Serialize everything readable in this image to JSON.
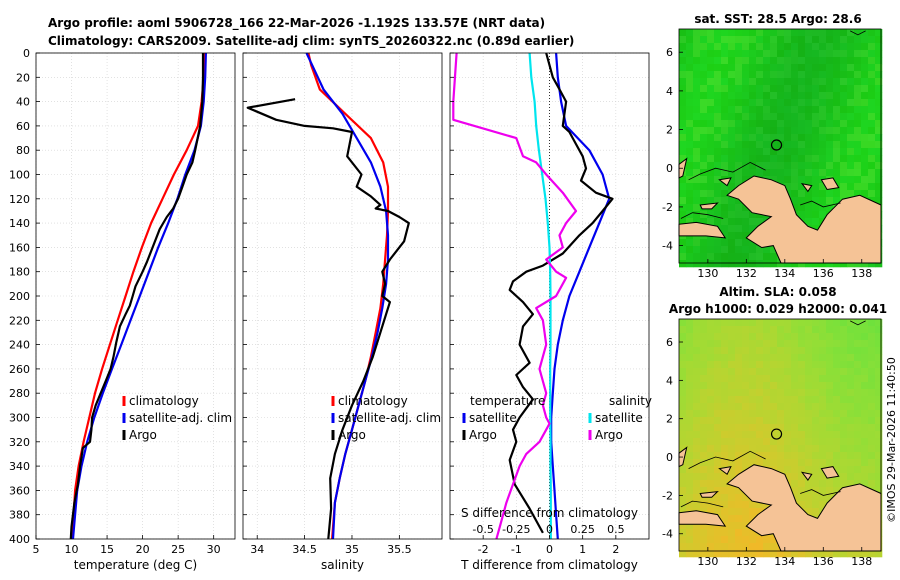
{
  "titles": {
    "line1": "Argo profile: aoml 5906728_166 22-Mar-2026 -1.192S 133.57E (NRT data)",
    "line2": "Climatology: CARS2009. Satellite-adj clim: synTS_20260322.nc (0.89d earlier)",
    "sst_map": "sat. SST: 28.5 Argo: 28.6",
    "sla_map_1": "Altim. SLA: 0.058",
    "sla_map_2": "Argo h1000: 0.029 h2000: 0.041",
    "credit": "©IMOS 29-Mar-2026 11:40:50"
  },
  "colors": {
    "climatology": "#ff0000",
    "satellite": "#0000ee",
    "argo": "#000000",
    "salinity_satellite": "#00e5ee",
    "salinity_argo": "#ee00ee",
    "land": "#f5c396",
    "coast": "#000000"
  },
  "chart_data": [
    {
      "type": "line",
      "id": "temperature",
      "xlabel": "temperature (deg C)",
      "ylabel": "",
      "xlim": [
        5,
        33
      ],
      "xticks": [
        5,
        10,
        15,
        20,
        25,
        30
      ],
      "ylim": [
        0,
        400
      ],
      "yticks": [
        0,
        20,
        40,
        60,
        80,
        100,
        120,
        140,
        160,
        180,
        200,
        220,
        240,
        260,
        280,
        300,
        320,
        340,
        360,
        380,
        400
      ],
      "legend": [
        "climatology",
        "satellite-adj. clim",
        "Argo"
      ],
      "series": [
        {
          "name": "climatology",
          "color": "#ff0000",
          "x": [
            28.7,
            28.6,
            28.3,
            27.8,
            26.2,
            24.4,
            22.8,
            21.2,
            19.9,
            18.7,
            17.6,
            16.5,
            15.4,
            14.3,
            13.3,
            12.5,
            11.7,
            11.0,
            10.5,
            10.1
          ],
          "y": [
            0,
            20,
            40,
            60,
            80,
            100,
            120,
            140,
            160,
            180,
            200,
            220,
            240,
            260,
            280,
            300,
            320,
            340,
            360,
            400
          ]
        },
        {
          "name": "satellite-adj. clim",
          "color": "#0000ee",
          "x": [
            28.9,
            28.8,
            28.6,
            28.2,
            27.3,
            26.0,
            24.9,
            23.6,
            22.2,
            20.9,
            19.6,
            18.3,
            17.0,
            15.7,
            14.4,
            13.2,
            12.2,
            11.4,
            10.8,
            10.2
          ],
          "y": [
            0,
            20,
            40,
            60,
            80,
            100,
            120,
            140,
            160,
            180,
            200,
            220,
            240,
            260,
            280,
            300,
            320,
            340,
            360,
            400
          ]
        },
        {
          "name": "Argo",
          "color": "#000000",
          "x": [
            28.5,
            28.5,
            28.4,
            28.1,
            27.4,
            27.0,
            26.2,
            25.6,
            25.0,
            24.3,
            23.4,
            22.4,
            21.4,
            20.6,
            20.0,
            19.0,
            18.6,
            18.2,
            17.6,
            16.8,
            16.3,
            15.9,
            15.5,
            14.8,
            13.4,
            12.9,
            12.8,
            12.6,
            11.6,
            11.2,
            10.9,
            10.4,
            10.0,
            9.9
          ],
          "y": [
            0,
            20,
            40,
            60,
            80,
            90,
            100,
            110,
            120,
            128,
            135,
            145,
            160,
            172,
            180,
            192,
            200,
            208,
            215,
            225,
            238,
            250,
            260,
            270,
            290,
            300,
            310,
            320,
            325,
            340,
            355,
            370,
            390,
            400
          ]
        }
      ]
    },
    {
      "type": "line",
      "id": "salinity",
      "xlabel": "salinity",
      "ylabel": "",
      "xlim": [
        33.85,
        35.95
      ],
      "xticks": [
        34,
        34.5,
        35,
        35.5
      ],
      "ylim": [
        0,
        400
      ],
      "legend": [
        "climatology",
        "satellite-adj. clim",
        "Argo"
      ],
      "series": [
        {
          "name": "climatology",
          "color": "#ff0000",
          "x": [
            34.54,
            34.57,
            34.66,
            34.93,
            35.2,
            35.33,
            35.38,
            35.38,
            35.37,
            35.35,
            35.33,
            35.3,
            35.25,
            35.2,
            35.14,
            35.07,
            35.0,
            34.93,
            34.87,
            34.82,
            34.79
          ],
          "y": [
            0,
            10,
            30,
            50,
            70,
            90,
            110,
            130,
            150,
            170,
            190,
            210,
            230,
            250,
            270,
            290,
            310,
            330,
            350,
            370,
            400
          ]
        },
        {
          "name": "satellite-adj. clim",
          "color": "#0000ee",
          "x": [
            34.52,
            34.58,
            34.7,
            34.9,
            35.05,
            35.2,
            35.3,
            35.36,
            35.38,
            35.38,
            35.36,
            35.32,
            35.27,
            35.21,
            35.14,
            35.07,
            35.0,
            34.93,
            34.87,
            34.82,
            34.8
          ],
          "y": [
            0,
            10,
            30,
            50,
            70,
            90,
            110,
            130,
            150,
            170,
            190,
            210,
            230,
            250,
            270,
            290,
            310,
            330,
            350,
            370,
            400
          ]
        },
        {
          "name": "Argo",
          "color": "#000000",
          "x": [
            34.4,
            33.9,
            34.2,
            34.5,
            34.8,
            35.0,
            34.95,
            35.1,
            35.05,
            35.2,
            35.3,
            35.25,
            35.38,
            35.5,
            35.6,
            35.55,
            35.4,
            35.32,
            35.35,
            35.32,
            35.4,
            35.36,
            35.3,
            35.22,
            35.12,
            35.0,
            34.9,
            34.82,
            34.77,
            34.78,
            34.75
          ],
          "y": [
            38,
            45,
            55,
            60,
            62,
            65,
            85,
            100,
            110,
            118,
            125,
            128,
            130,
            135,
            140,
            155,
            170,
            180,
            190,
            200,
            205,
            215,
            230,
            250,
            270,
            290,
            310,
            330,
            350,
            375,
            400
          ]
        }
      ]
    },
    {
      "type": "line",
      "id": "differences",
      "xlabel": "T difference from climatology",
      "xlabel_top": "S difference from climatology",
      "xlim": [
        -3,
        3
      ],
      "xticks": [
        -2,
        -1,
        0,
        1,
        2
      ],
      "s_xticks": [
        -0.5,
        -0.25,
        0,
        0.25,
        0.5
      ],
      "s_xtick_labels": [
        "-0.5",
        "-0.25",
        "0",
        "0.25",
        "0.5"
      ],
      "ylim": [
        0,
        400
      ],
      "legend_headers": [
        "temperature",
        "salinity"
      ],
      "legend": [
        "satellite",
        "Argo",
        "satellite",
        "Argo"
      ],
      "series": [
        {
          "name": "temperature satellite",
          "color": "#0000ee",
          "x": [
            0.2,
            0.25,
            0.35,
            0.5,
            1.2,
            1.6,
            1.8,
            1.5,
            1.2,
            0.9,
            0.6,
            0.4,
            0.25,
            0.15,
            0.1,
            0.05,
            0.05,
            0.1,
            0.15,
            0.2,
            0.25
          ],
          "y": [
            0,
            20,
            40,
            60,
            80,
            100,
            120,
            140,
            160,
            180,
            200,
            220,
            240,
            260,
            280,
            300,
            320,
            340,
            360,
            380,
            400
          ]
        },
        {
          "name": "temperature Argo",
          "color": "#000000",
          "x": [
            -0.1,
            0.1,
            0.3,
            0.5,
            0.4,
            0.6,
            0.8,
            1.0,
            1.1,
            0.95,
            1.4,
            1.9,
            1.6,
            1.3,
            0.9,
            0.4,
            -0.2,
            -0.7,
            -1.1,
            -1.2,
            -0.8,
            -0.5,
            -0.8,
            -0.9,
            -0.6,
            -1.0,
            -0.8,
            -0.5,
            -0.9,
            -1.1,
            -1.0,
            -1.2,
            -1.05,
            -0.6,
            -0.2
          ],
          "y": [
            0,
            20,
            30,
            40,
            60,
            65,
            75,
            85,
            95,
            105,
            115,
            120,
            130,
            140,
            150,
            165,
            175,
            180,
            188,
            195,
            205,
            215,
            225,
            240,
            255,
            265,
            275,
            285,
            300,
            310,
            320,
            335,
            355,
            375,
            395
          ]
        },
        {
          "name": "salinity satellite",
          "color": "#00e5ee",
          "x": [
            -0.6,
            -0.55,
            -0.45,
            -0.4,
            -0.32,
            -0.22,
            -0.12,
            -0.05,
            0,
            0.02,
            0.03,
            0.03,
            0.03,
            0.02,
            0.02,
            0.02,
            0.03,
            0.03,
            0.04,
            0.04,
            0.04
          ],
          "y": [
            0,
            20,
            40,
            60,
            80,
            100,
            120,
            140,
            160,
            180,
            200,
            220,
            240,
            260,
            280,
            300,
            320,
            340,
            360,
            380,
            400
          ]
        },
        {
          "name": "salinity Argo",
          "color": "#ee00ee",
          "x": [
            -2.8,
            -2.9,
            -2.9,
            -1.0,
            -0.8,
            -0.4,
            -0.1,
            0.4,
            0.8,
            0.5,
            0.3,
            0.4,
            -0.1,
            0.2,
            0.5,
            0.2,
            -0.4,
            -0.2,
            -0.1,
            -0.3,
            -0.1,
            -0.2,
            -0.1,
            0.0,
            -0.1,
            -0.3,
            -0.7,
            -0.9,
            -1.1,
            -1.3,
            -1.5,
            -1.6
          ],
          "y": [
            0,
            40,
            55,
            70,
            85,
            90,
            100,
            115,
            130,
            140,
            150,
            160,
            170,
            180,
            185,
            200,
            210,
            220,
            240,
            260,
            280,
            290,
            300,
            305,
            310,
            320,
            330,
            340,
            355,
            370,
            390,
            400
          ]
        }
      ]
    },
    {
      "type": "heatmap",
      "id": "sst_map",
      "title": "sat. SST: 28.5 Argo: 28.6",
      "xlim": [
        128.5,
        139
      ],
      "xticks": [
        130,
        132,
        134,
        136,
        138
      ],
      "ylim": [
        -4.9,
        7.2
      ],
      "yticks": [
        -4,
        -2,
        0,
        2,
        4,
        6
      ],
      "profile_marker": {
        "lon": 133.57,
        "lat": 1.2
      }
    },
    {
      "type": "heatmap",
      "id": "sla_map",
      "title": "Altim. SLA: 0.058 / Argo h1000: 0.029 h2000: 0.041",
      "xlim": [
        128.5,
        139
      ],
      "xticks": [
        130,
        132,
        134,
        136,
        138
      ],
      "ylim": [
        -4.9,
        7.2
      ],
      "yticks": [
        -4,
        -2,
        0,
        2,
        4,
        6
      ],
      "profile_marker": {
        "lon": 133.57,
        "lat": 1.2
      }
    }
  ]
}
